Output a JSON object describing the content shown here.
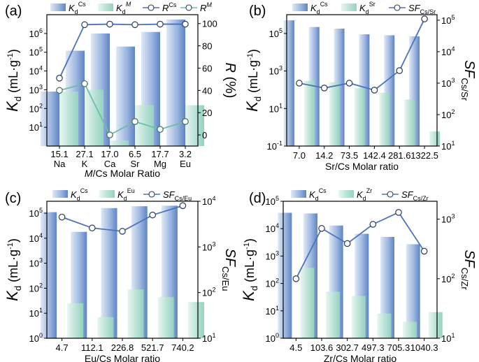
{
  "chart_data": [
    {
      "panel": "(a)",
      "type": "bar+line",
      "categories": [
        "Na",
        "K",
        "Ca",
        "Sr",
        "Mg",
        "Eu"
      ],
      "ratios": [
        "15.1",
        "27.1",
        "17.0",
        "6.5",
        "17.7",
        "3.2"
      ],
      "xlabel_italic": "M",
      "xlabel_rest": "/Cs Molar Ratio",
      "ylabel_left": "K",
      "ylabel_left_sub": "d",
      "ylabel_left_unit": " (mL·g",
      "ylabel_left_unit_sup": "-1",
      "ylabel_left_unit_end": ")",
      "ylabel_right": "R (%)",
      "y_left_scale": "log",
      "ylim_left": [
        1,
        10000000
      ],
      "y_left_ticks": [
        {
          "v": 10,
          "base": "10",
          "exp": "1"
        },
        {
          "v": 100,
          "base": "10",
          "exp": "2"
        },
        {
          "v": 1000,
          "base": "10",
          "exp": "3"
        },
        {
          "v": 10000,
          "base": "10",
          "exp": "4"
        },
        {
          "v": 100000,
          "base": "10",
          "exp": "5"
        },
        {
          "v": 1000000,
          "base": "10",
          "exp": "6"
        }
      ],
      "y_right_scale": "linear",
      "ylim_right": [
        -10,
        108
      ],
      "y_right_ticks": [
        {
          "v": 0,
          "label": "0"
        },
        {
          "v": 20,
          "label": "20"
        },
        {
          "v": 40,
          "label": "40"
        },
        {
          "v": 60,
          "label": "60"
        },
        {
          "v": 80,
          "label": "80"
        },
        {
          "v": 100,
          "label": "100"
        }
      ],
      "bars": [
        {
          "name_base": "K",
          "name_sub": "d",
          "name_sup": "Cs",
          "values": [
            800,
            120000,
            1000000,
            200000,
            1200000,
            5500000
          ]
        },
        {
          "name_base": "K",
          "name_sub": "d",
          "name_sup": "M",
          "values": [
            800,
            1000,
            2,
            150,
            1,
            150
          ]
        }
      ],
      "lines": [
        {
          "name_base": "R",
          "name_sup": "Cs",
          "values": [
            51,
            99,
            99.5,
            99,
            99.5,
            99.5
          ]
        },
        {
          "name_base": "R",
          "name_sup": "M",
          "values": [
            40,
            46,
            0,
            12,
            5,
            12
          ]
        }
      ]
    },
    {
      "panel": "(b)",
      "type": "bar+line",
      "categories": [
        "7.0",
        "14.2",
        "73.5",
        "142.4",
        "281.6",
        "1322.5"
      ],
      "xlabel": "Sr/Cs Molar ratio",
      "ylabel_left": "K",
      "ylabel_left_sub": "d",
      "ylabel_left_unit": " (mL·g",
      "ylabel_left_unit_sup": "-1",
      "ylabel_left_unit_end": ")",
      "ylabel_right": "SF",
      "ylabel_right_sub": "Cs/Sr",
      "y_left_scale": "log",
      "ylim_left": [
        0.1,
        1000000
      ],
      "y_left_ticks": [
        {
          "v": 0.1,
          "base": "10",
          "exp": "-1"
        },
        {
          "v": 10,
          "base": "10",
          "exp": "1"
        },
        {
          "v": 1000,
          "base": "10",
          "exp": "3"
        },
        {
          "v": 100000,
          "base": "10",
          "exp": "5"
        }
      ],
      "y_right_scale": "log",
      "ylim_right": [
        10,
        150000
      ],
      "y_right_ticks": [
        {
          "v": 10,
          "base": "10",
          "exp": "1"
        },
        {
          "v": 100,
          "base": "10",
          "exp": "2"
        },
        {
          "v": 1000,
          "base": "10",
          "exp": "3"
        },
        {
          "v": 10000,
          "base": "10",
          "exp": "4"
        },
        {
          "v": 100000,
          "base": "10",
          "exp": "5"
        }
      ],
      "bars": [
        {
          "name_base": "K",
          "name_sub": "d",
          "name_sup": "Cs",
          "values": [
            500000,
            220000,
            180000,
            90000,
            80000,
            70000
          ]
        },
        {
          "name_base": "K",
          "name_sub": "d",
          "name_sup": "Sr",
          "values": [
            300,
            250,
            120,
            70,
            30,
            0.6
          ]
        }
      ],
      "lines": [
        {
          "name_base": "SF",
          "name_sub": "Cs/Sr",
          "values": [
            1000,
            700,
            1000,
            600,
            2500,
            110000
          ]
        }
      ]
    },
    {
      "panel": "(c)",
      "type": "bar+line",
      "categories": [
        "4.7",
        "112.1",
        "226.8",
        "521.7",
        "740.2"
      ],
      "xlabel": "Eu/Cs Molar ratio",
      "ylabel_left": "K",
      "ylabel_left_sub": "d",
      "ylabel_left_unit": " (mL·g",
      "ylabel_left_unit_sup": "-1",
      "ylabel_left_unit_end": ")",
      "ylabel_right": "SF",
      "ylabel_right_sub": "Cs/Eu",
      "y_left_scale": "log",
      "ylim_left": [
        1,
        300000
      ],
      "y_left_ticks": [
        {
          "v": 1,
          "base": "10",
          "exp": "0"
        },
        {
          "v": 10,
          "base": "10",
          "exp": "1"
        },
        {
          "v": 100,
          "base": "10",
          "exp": "2"
        },
        {
          "v": 1000,
          "base": "10",
          "exp": "3"
        },
        {
          "v": 10000,
          "base": "10",
          "exp": "4"
        },
        {
          "v": 100000,
          "base": "10",
          "exp": "5"
        }
      ],
      "y_right_scale": "log",
      "ylim_right": [
        10,
        10000
      ],
      "y_right_ticks": [
        {
          "v": 10,
          "base": "10",
          "exp": "1"
        },
        {
          "v": 100,
          "base": "10",
          "exp": "2"
        },
        {
          "v": 1000,
          "base": "10",
          "exp": "3"
        },
        {
          "v": 10000,
          "base": "10",
          "exp": "4"
        }
      ],
      "bars": [
        {
          "name_base": "K",
          "name_sub": "d",
          "name_sup": "Cs",
          "values": [
            110000,
            18000,
            160000,
            190000,
            200000
          ]
        },
        {
          "name_base": "K",
          "name_sub": "d",
          "name_sup": "Eu",
          "values": [
            25,
            7,
            90,
            45,
            28
          ]
        }
      ],
      "lines": [
        {
          "name_base": "SF",
          "name_sub": "Cs/Eu",
          "values": [
            4500,
            2600,
            2200,
            5000,
            8000
          ]
        }
      ]
    },
    {
      "panel": "(d)",
      "type": "bar+line",
      "categories": [
        "4.5",
        "103.6",
        "302.7",
        "497.3",
        "705.3",
        "1040.3"
      ],
      "xlabel": "Zr/Cs Molar ratio",
      "ylabel_left": "K",
      "ylabel_left_sub": "d",
      "ylabel_left_unit": " (mL·g",
      "ylabel_left_unit_sup": "-1",
      "ylabel_left_unit_end": ")",
      "ylabel_right": "SF",
      "ylabel_right_sub": "Cs/Zr",
      "y_left_scale": "log",
      "ylim_left": [
        1,
        100000
      ],
      "y_left_ticks": [
        {
          "v": 1,
          "base": "10",
          "exp": "0"
        },
        {
          "v": 10,
          "base": "10",
          "exp": "1"
        },
        {
          "v": 100,
          "base": "10",
          "exp": "2"
        },
        {
          "v": 1000,
          "base": "10",
          "exp": "3"
        },
        {
          "v": 10000,
          "base": "10",
          "exp": "4"
        },
        {
          "v": 100000,
          "base": "10",
          "exp": "5"
        }
      ],
      "y_right_scale": "log",
      "ylim_right": [
        10,
        2000
      ],
      "y_right_ticks": [
        {
          "v": 10,
          "base": "10",
          "exp": "1"
        },
        {
          "v": 100,
          "base": "10",
          "exp": "2"
        },
        {
          "v": 1000,
          "base": "10",
          "exp": "3"
        }
      ],
      "bars": [
        {
          "name_base": "K",
          "name_sub": "d",
          "name_sup": "Cs",
          "values": [
            38000,
            36000,
            13000,
            6500,
            5000,
            2700
          ]
        },
        {
          "name_base": "K",
          "name_sub": "d",
          "name_sup": "Zr",
          "values": [
            370,
            50,
            35,
            8,
            4,
            9
          ]
        }
      ],
      "lines": [
        {
          "name_base": "SF",
          "name_sub": "Cs/Zr",
          "values": [
            100,
            700,
            390,
            820,
            1300,
            290
          ]
        }
      ]
    }
  ]
}
